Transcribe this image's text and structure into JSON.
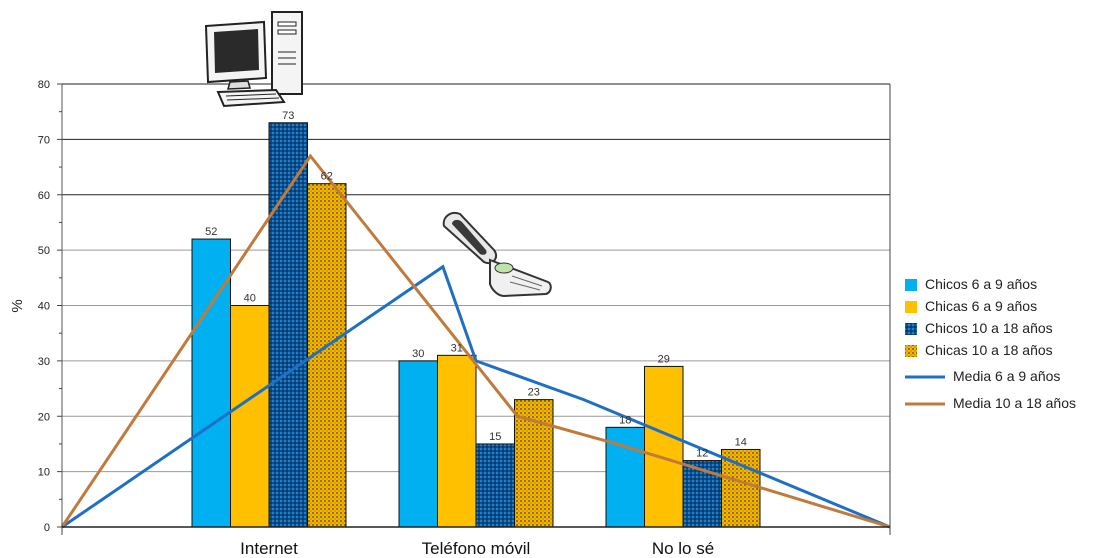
{
  "chart_data": {
    "type": "bar",
    "ylabel": "%",
    "ylim": [
      0,
      80
    ],
    "yticks": [
      "0",
      "10",
      "20",
      "30",
      "40",
      "50",
      "60",
      "70",
      "80"
    ],
    "grid": true,
    "legend_position": "right",
    "categories": [
      "Internet",
      "Teléfono móvil",
      "No lo sé"
    ],
    "bar_series": [
      {
        "name": "Chicos 6 a 9 años",
        "color": "#00b0f0",
        "pattern": "solid",
        "values": [
          52,
          30,
          18
        ],
        "labels": [
          "52",
          "30",
          "18"
        ]
      },
      {
        "name": "Chicas 6 a 9 años",
        "color": "#ffc000",
        "pattern": "solid",
        "values": [
          40,
          31,
          29
        ],
        "labels": [
          "40",
          "31",
          "29"
        ]
      },
      {
        "name": "Chicos 10 a 18 años",
        "color": "#0070c0",
        "pattern": "dotted",
        "values": [
          73,
          15,
          12
        ],
        "labels": [
          "73",
          "15",
          "12"
        ]
      },
      {
        "name": "Chicas 10 a 18 años",
        "color": "#e8a800",
        "pattern": "dotted",
        "values": [
          62,
          23,
          14
        ],
        "labels": [
          "62",
          "23",
          "14"
        ]
      }
    ],
    "line_series": [
      {
        "name": "Media 6 a 9 años",
        "color": "#1f6fc6",
        "points": [
          [
            0,
            0
          ],
          [
            46,
            47
          ],
          [
            50,
            30
          ],
          [
            63,
            23
          ],
          [
            100,
            0
          ]
        ]
      },
      {
        "name": "Media 10 a 18 años",
        "color": "#c07a3c",
        "points": [
          [
            0,
            0
          ],
          [
            30,
            67
          ],
          [
            55,
            20
          ],
          [
            67,
            15
          ],
          [
            100,
            0
          ]
        ]
      }
    ],
    "decorations": [
      "desktop-computer-icon",
      "flip-phone-icon"
    ]
  }
}
